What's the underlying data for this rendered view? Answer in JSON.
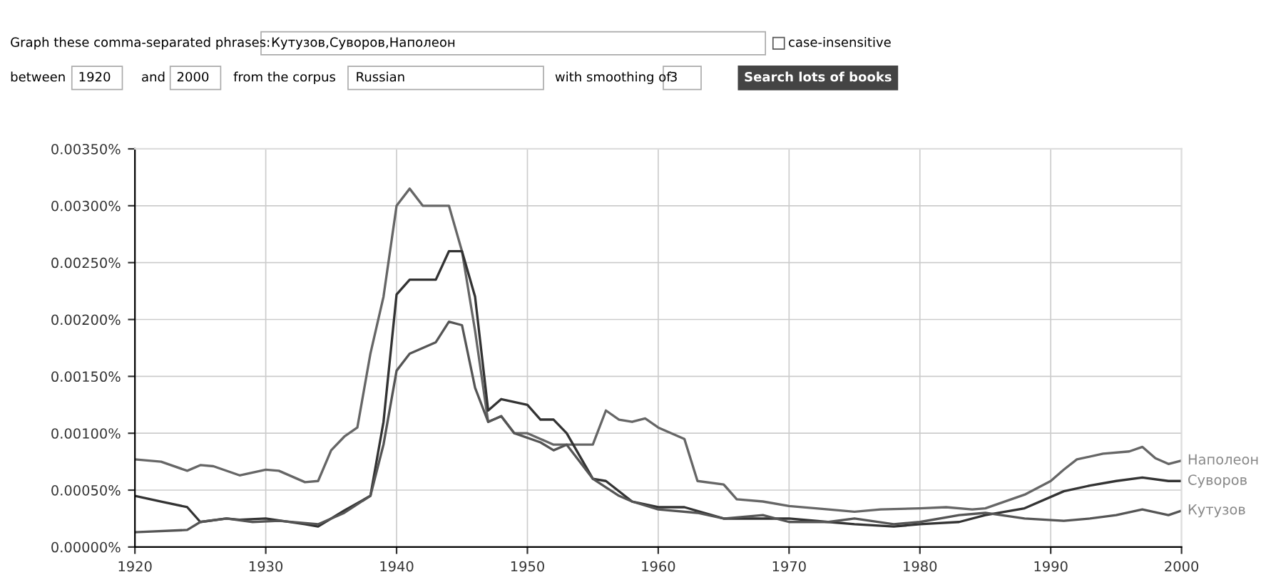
{
  "chart_data": {
    "type": "line",
    "annotations": [
      "Graph these comma-separated phrases:",
      "Кутузов,Суворов,Наполеон",
      "case-insensitive",
      "between",
      "1920",
      "and",
      "2000",
      "from the corpus",
      "Russian",
      "with smoothing of",
      "3",
      "Search lots of books"
    ],
    "xlim": [
      1920,
      2000
    ],
    "xticks": [
      1920,
      1930,
      1940,
      1950,
      1960,
      1970,
      1980,
      1990,
      2000
    ],
    "ylim": [
      0,
      0.0035
    ],
    "yticks": [
      {
        "value": 0,
        "label": "0.00000%"
      },
      {
        "value": 0.0005,
        "label": "0.00050%"
      },
      {
        "value": 0.001,
        "label": "0.00100%"
      },
      {
        "value": 0.0015,
        "label": "0.00150%"
      },
      {
        "value": 0.002,
        "label": "0.00200%"
      },
      {
        "value": 0.0025,
        "label": "0.00250%"
      },
      {
        "value": 0.003,
        "label": "0.00300%"
      },
      {
        "value": 0.0035,
        "label": "0.00350%"
      }
    ],
    "grid": true,
    "marker": "none",
    "line_style": "solid",
    "series": [
      {
        "name": "Наполеон",
        "color": "#666666",
        "x": [
          1920,
          1922,
          1924,
          1925,
          1926,
          1928,
          1930,
          1931,
          1933,
          1934,
          1935,
          1936,
          1937,
          1938,
          1939,
          1940,
          1941,
          1942,
          1944,
          1945,
          1946,
          1947,
          1948,
          1949,
          1950,
          1951,
          1952,
          1955,
          1956,
          1957,
          1958,
          1959,
          1960,
          1962,
          1963,
          1965,
          1966,
          1968,
          1970,
          1973,
          1975,
          1977,
          1980,
          1982,
          1984,
          1985,
          1988,
          1990,
          1991,
          1992,
          1994,
          1996,
          1997,
          1998,
          1999,
          2000
        ],
        "values": [
          0.00077,
          0.00075,
          0.00067,
          0.00072,
          0.00071,
          0.00063,
          0.00068,
          0.00067,
          0.00057,
          0.00058,
          0.00085,
          0.00097,
          0.00105,
          0.0017,
          0.0022,
          0.003,
          0.00315,
          0.003,
          0.003,
          0.0026,
          0.0019,
          0.0011,
          0.00115,
          0.001,
          0.001,
          0.00095,
          0.0009,
          0.0009,
          0.0012,
          0.00112,
          0.0011,
          0.00113,
          0.00105,
          0.00095,
          0.00058,
          0.00055,
          0.00042,
          0.0004,
          0.00036,
          0.00033,
          0.00031,
          0.00033,
          0.00034,
          0.00035,
          0.00033,
          0.00034,
          0.00046,
          0.00058,
          0.00068,
          0.00077,
          0.00082,
          0.00084,
          0.00088,
          0.00078,
          0.00073,
          0.00076
        ]
      },
      {
        "name": "Суворов",
        "color": "#333333",
        "x": [
          1920,
          1922,
          1924,
          1925,
          1927,
          1928,
          1930,
          1933,
          1934,
          1936,
          1938,
          1939,
          1940,
          1941,
          1943,
          1944,
          1945,
          1946,
          1947,
          1948,
          1950,
          1951,
          1952,
          1953,
          1955,
          1956,
          1958,
          1960,
          1962,
          1965,
          1967,
          1970,
          1973,
          1975,
          1978,
          1980,
          1983,
          1985,
          1988,
          1991,
          1993,
          1995,
          1997,
          1999,
          2000
        ],
        "values": [
          0.00045,
          0.0004,
          0.00035,
          0.00022,
          0.00025,
          0.00024,
          0.00025,
          0.0002,
          0.00018,
          0.00032,
          0.00045,
          0.0011,
          0.00222,
          0.00235,
          0.00235,
          0.0026,
          0.0026,
          0.0022,
          0.0012,
          0.0013,
          0.00125,
          0.00112,
          0.00112,
          0.001,
          0.0006,
          0.00058,
          0.0004,
          0.00035,
          0.00035,
          0.00025,
          0.00025,
          0.00025,
          0.00022,
          0.0002,
          0.00018,
          0.0002,
          0.00022,
          0.00028,
          0.00034,
          0.00049,
          0.00054,
          0.00058,
          0.00061,
          0.00058,
          0.00058
        ]
      },
      {
        "name": "Кутузов",
        "color": "#555555",
        "x": [
          1920,
          1924,
          1925,
          1927,
          1929,
          1931,
          1934,
          1936,
          1938,
          1939,
          1940,
          1941,
          1943,
          1944,
          1945,
          1946,
          1947,
          1948,
          1949,
          1951,
          1952,
          1953,
          1955,
          1957,
          1958,
          1960,
          1963,
          1965,
          1968,
          1970,
          1973,
          1975,
          1978,
          1980,
          1983,
          1985,
          1988,
          1991,
          1993,
          1995,
          1997,
          1999,
          2000
        ],
        "values": [
          0.00013,
          0.00015,
          0.00022,
          0.00025,
          0.00022,
          0.00023,
          0.0002,
          0.0003,
          0.00045,
          0.0009,
          0.00155,
          0.0017,
          0.0018,
          0.00198,
          0.00195,
          0.0014,
          0.0011,
          0.00115,
          0.001,
          0.00092,
          0.00085,
          0.0009,
          0.0006,
          0.00045,
          0.0004,
          0.00033,
          0.0003,
          0.00025,
          0.00028,
          0.00022,
          0.00022,
          0.00025,
          0.0002,
          0.00022,
          0.00028,
          0.0003,
          0.00025,
          0.00023,
          0.00025,
          0.00028,
          0.00033,
          0.00028,
          0.00032
        ]
      }
    ]
  }
}
